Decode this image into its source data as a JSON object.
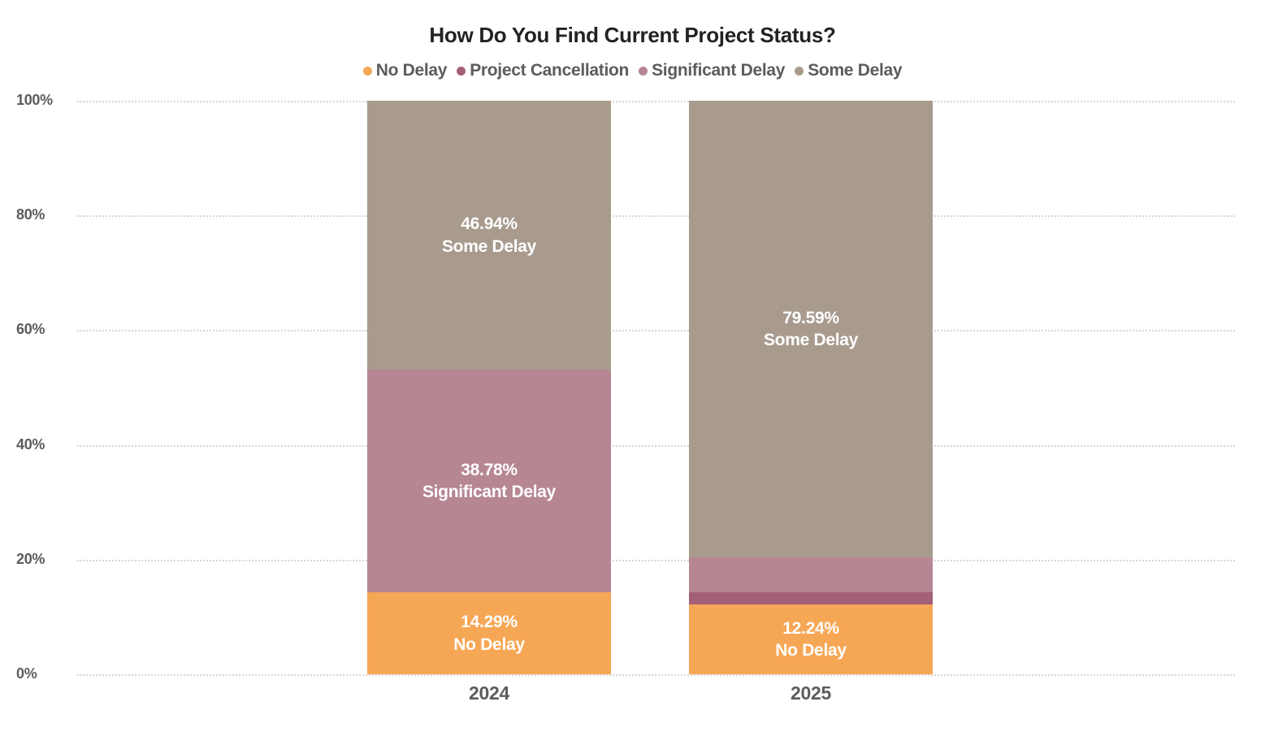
{
  "chart_data": {
    "type": "bar",
    "stacked": true,
    "title": "How Do You Find Current Project Status?",
    "categories": [
      "2024",
      "2025"
    ],
    "series": [
      {
        "name": "No Delay",
        "color": "#F6A755",
        "values": [
          14.29,
          12.24
        ],
        "value_labels": [
          "14.29%",
          "12.24%"
        ],
        "show_labels": [
          true,
          true
        ]
      },
      {
        "name": "Project Cancellation",
        "color": "#A45F78",
        "values": [
          0,
          2.04
        ],
        "value_labels": [
          "",
          ""
        ],
        "show_labels": [
          false,
          false
        ]
      },
      {
        "name": "Significant Delay",
        "color": "#B68693",
        "values": [
          38.78,
          6.12
        ],
        "value_labels": [
          "38.78%",
          ""
        ],
        "show_labels": [
          true,
          false
        ]
      },
      {
        "name": "Some Delay",
        "color": "#A89B8E",
        "values": [
          46.94,
          79.59
        ],
        "value_labels": [
          "46.94%",
          "79.59%"
        ],
        "show_labels": [
          true,
          true
        ]
      }
    ],
    "ylim": [
      0,
      100
    ],
    "ytick_values": [
      0,
      20,
      40,
      60,
      80,
      100
    ],
    "ytick_labels": [
      "0%",
      "20%",
      "40%",
      "60%",
      "80%",
      "100%"
    ],
    "grid": "horizontal-dotted",
    "legend_position": "top-center",
    "text_colors": {
      "title": "#222222",
      "axis": "#5c5c5c",
      "segment_label": "#ffffff"
    }
  }
}
